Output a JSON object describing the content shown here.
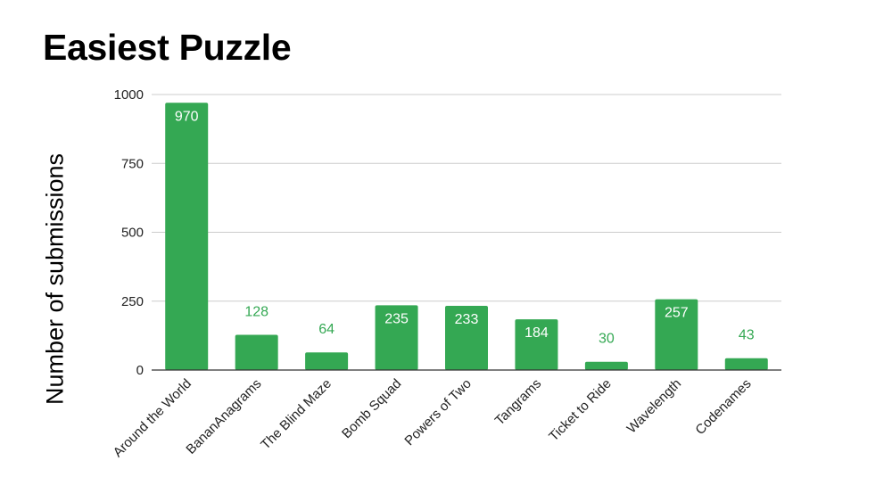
{
  "chart_data": {
    "type": "bar",
    "title": "Easiest Puzzle",
    "xlabel": "",
    "ylabel": "Number of submissions",
    "categories": [
      "Around the World",
      "BananAnagrams",
      "The Blind Maze",
      "Bomb Squad",
      "Powers of Two",
      "Tangrams",
      "Ticket to Ride",
      "Wavelength",
      "Codenames"
    ],
    "values": [
      970,
      128,
      64,
      235,
      233,
      184,
      30,
      257,
      43
    ],
    "ylim": [
      0,
      1000
    ],
    "yticks": [
      0,
      250,
      500,
      750,
      1000
    ],
    "grid": true,
    "legend": "none",
    "data_labels": true
  },
  "colors": {
    "bar": "#34a853",
    "label_inside": "#ffffff",
    "label_outside": "#34a853",
    "gridline": "#cccccc",
    "axis": "#333333"
  }
}
